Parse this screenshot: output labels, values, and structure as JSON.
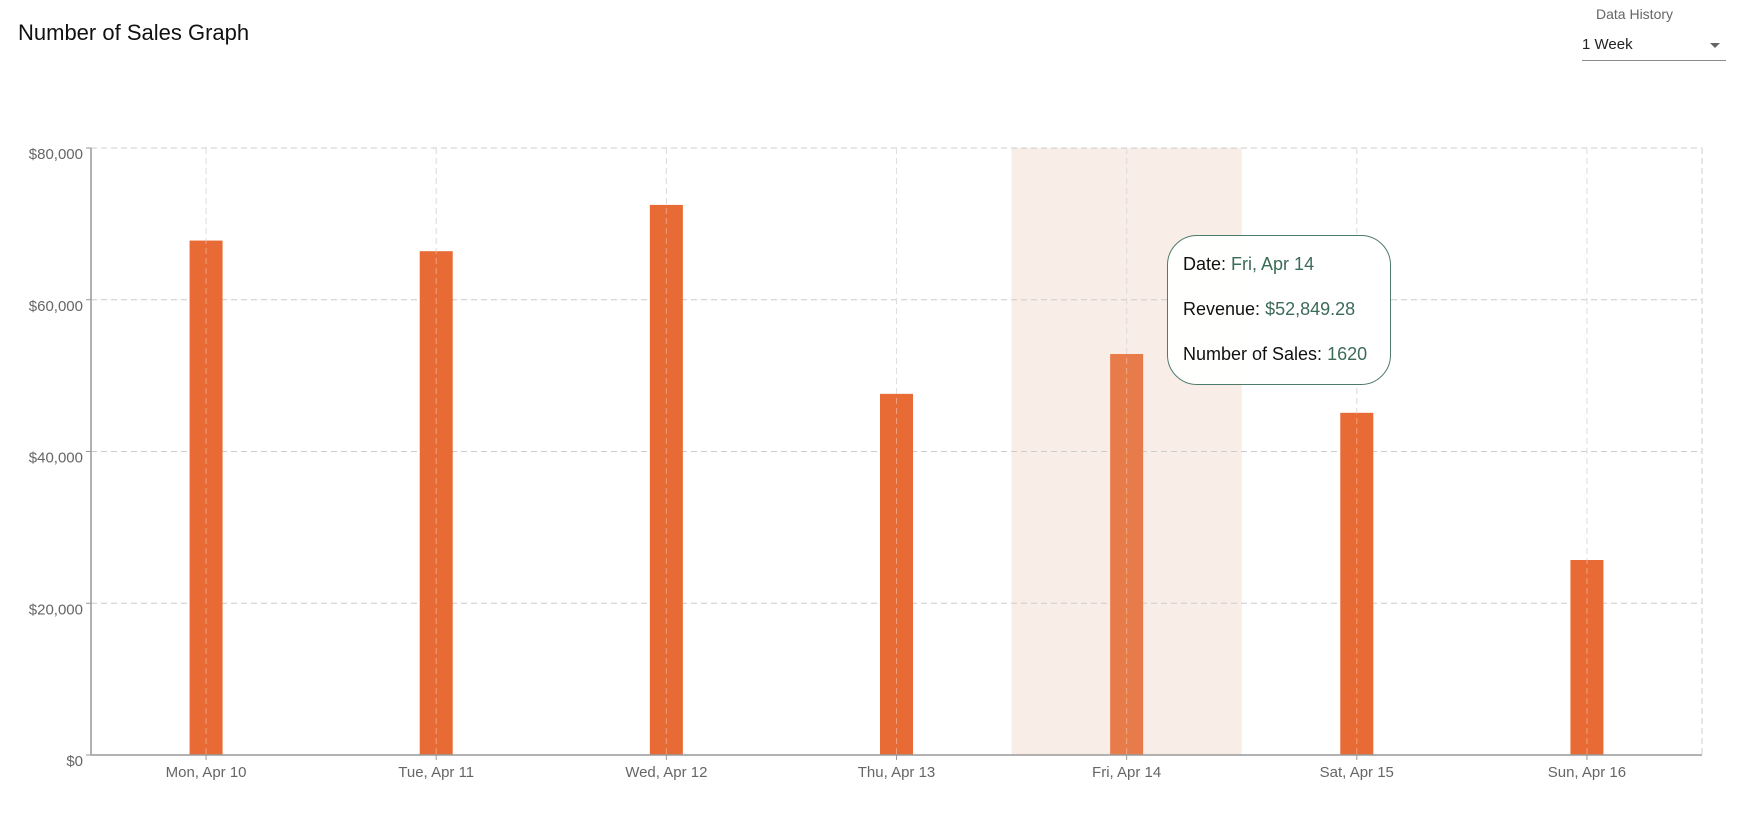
{
  "title": "Number of Sales Graph",
  "history": {
    "label": "Data History",
    "value": "1 Week"
  },
  "colors": {
    "bar": "#e86b35",
    "bar_active": "#e87b4a",
    "highlight": "#f8ede7",
    "tooltip_value": "#3c6b58",
    "tooltip_border": "#4e7a6a",
    "grid": "#cccccc"
  },
  "tooltip": {
    "date_label": "Date:",
    "date_value": "Fri, Apr 14",
    "revenue_label": "Revenue:",
    "revenue_value": "$52,849.28",
    "sales_label": "Number of Sales:",
    "sales_value": "1620"
  },
  "chart_data": {
    "type": "bar",
    "categories": [
      "Mon, Apr 10",
      "Tue, Apr 11",
      "Wed, Apr 12",
      "Thu, Apr 13",
      "Fri, Apr 14",
      "Sat, Apr 15",
      "Sun, Apr 16"
    ],
    "values": [
      67800,
      66400,
      72500,
      47600,
      52849.28,
      45100,
      25700
    ],
    "ylim": [
      0,
      80000
    ],
    "yticks": [
      0,
      20000,
      40000,
      60000,
      80000
    ],
    "ytick_labels": [
      "$0",
      "$20,000",
      "$40,000",
      "$60,000",
      "$80,000"
    ],
    "grid": true,
    "highlighted_category": "Fri, Apr 14"
  }
}
